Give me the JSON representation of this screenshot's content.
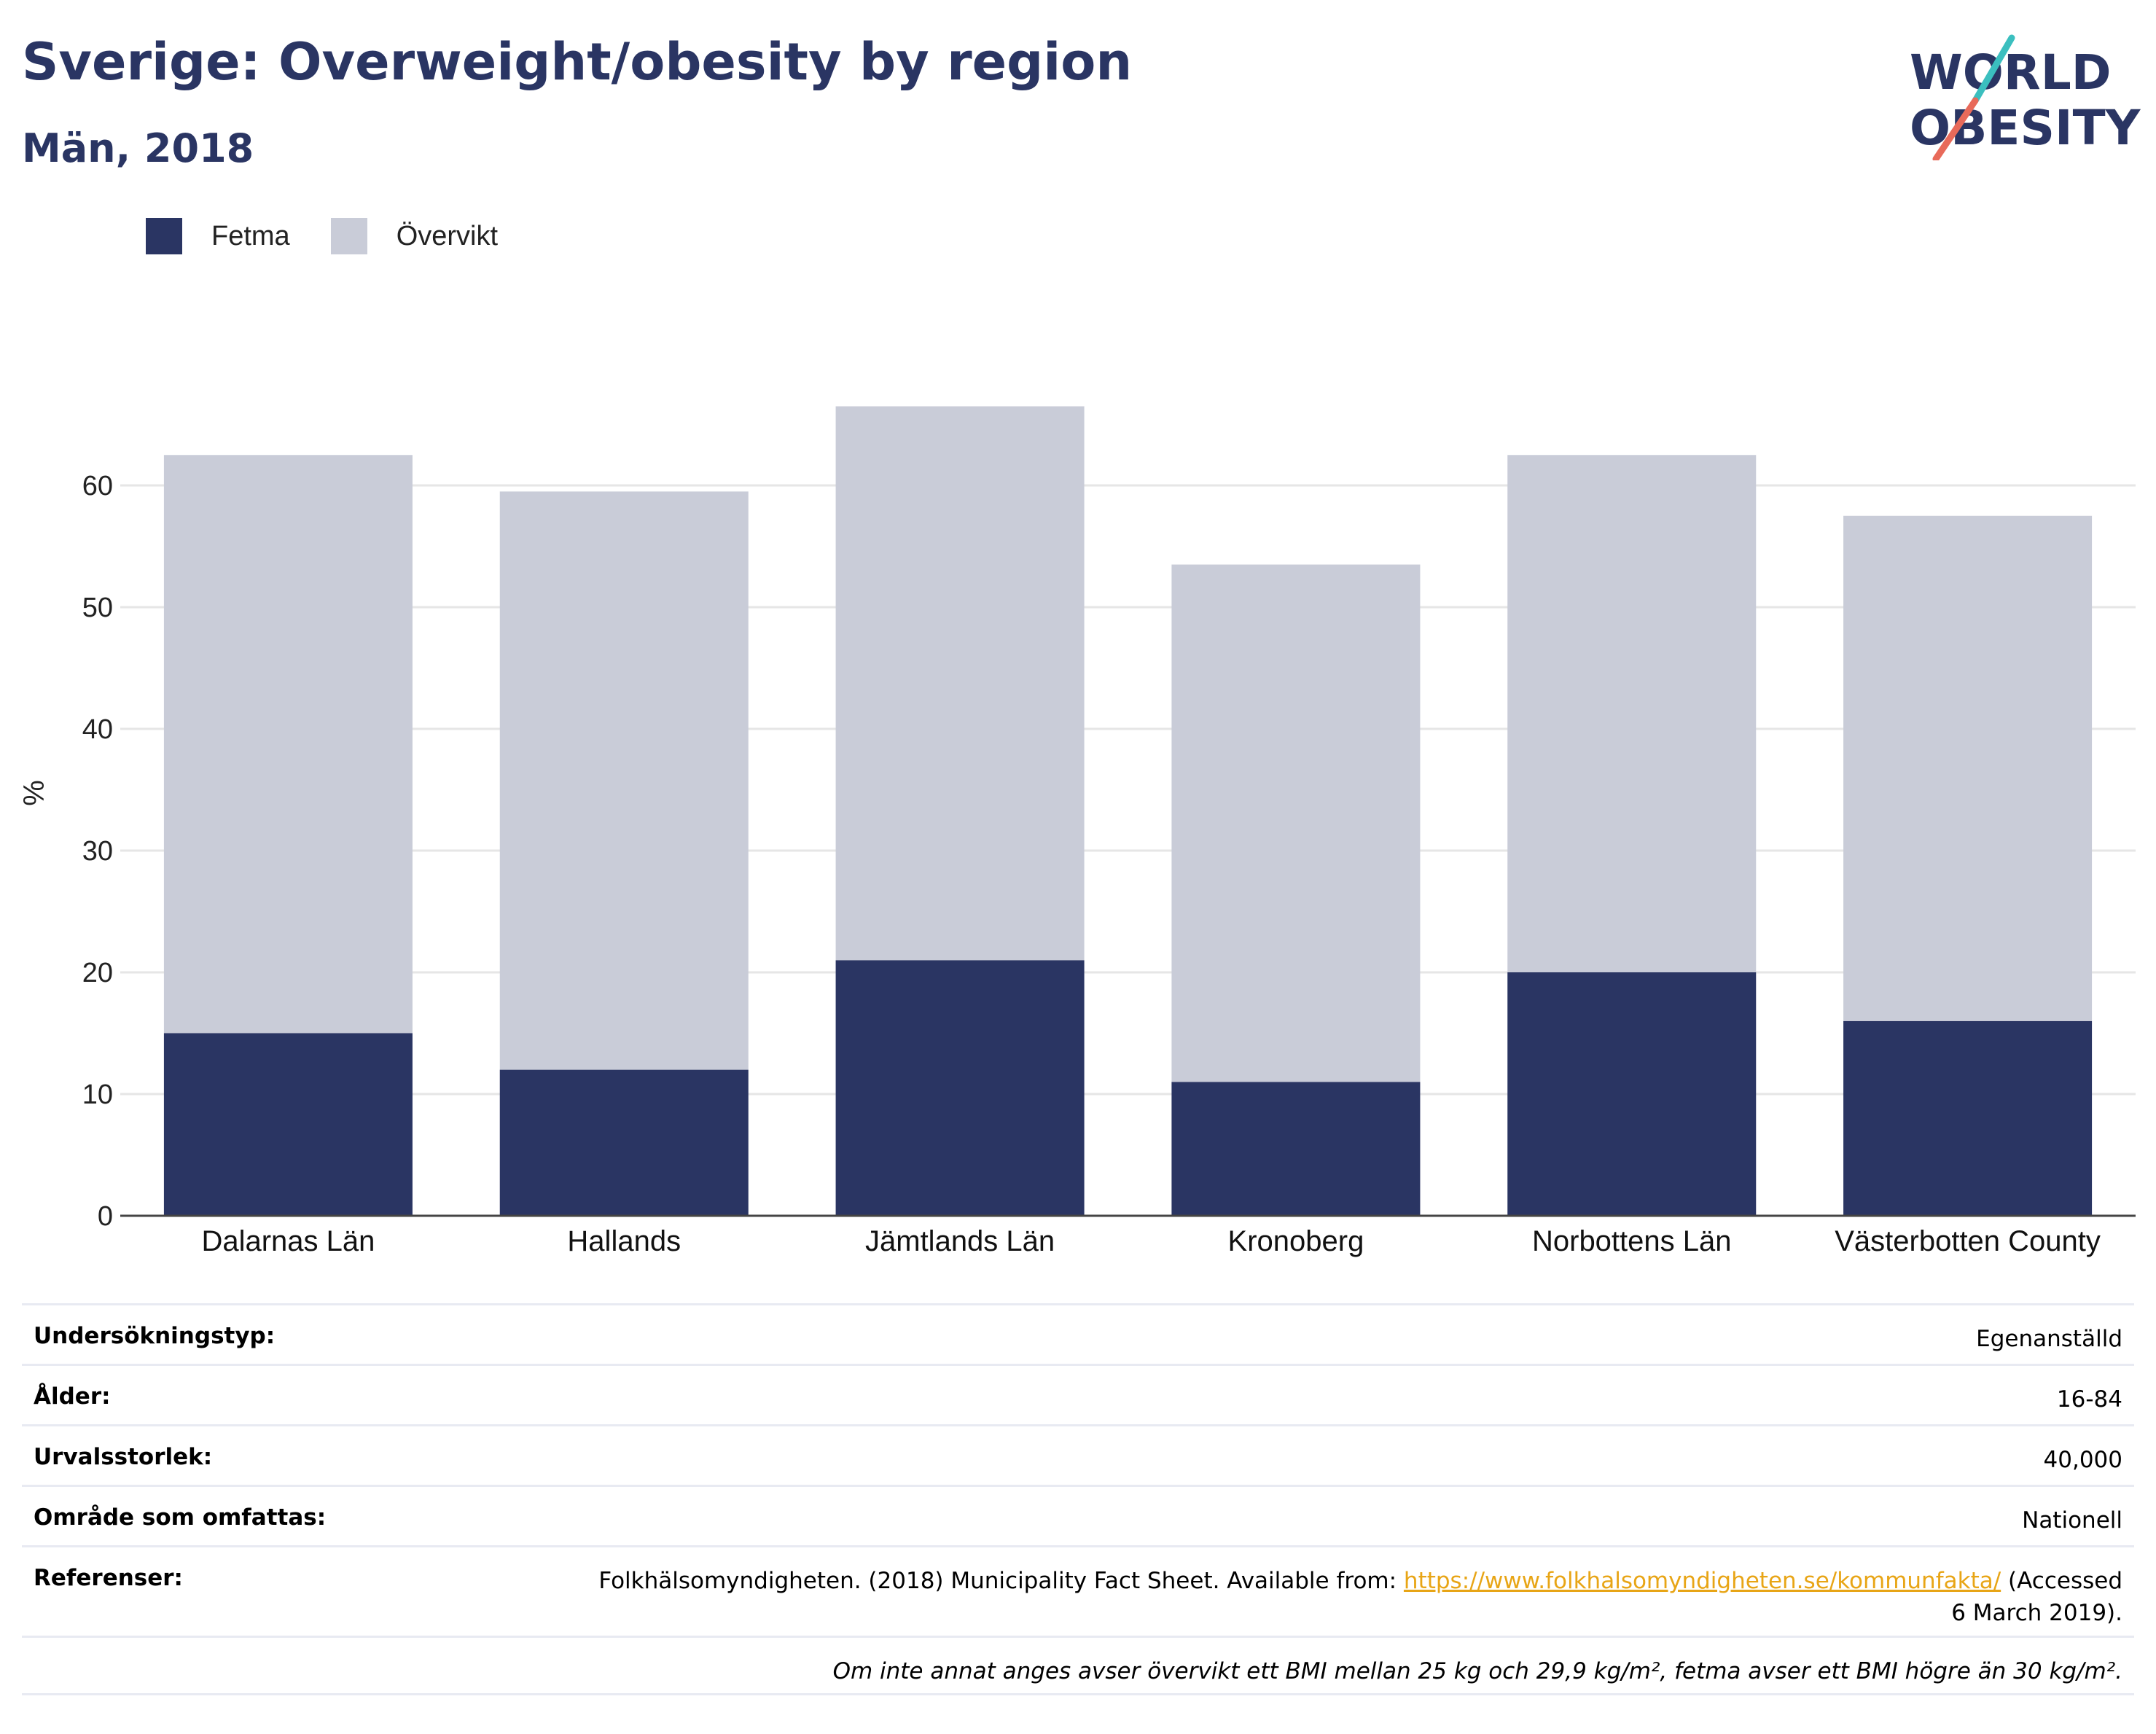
{
  "header": {
    "title": "Sverige: Overweight/obesity by region",
    "subtitle": "Män, 2018"
  },
  "logo": {
    "line1": "WORLD",
    "line2": "OBESITY",
    "colors": {
      "text": "#2a3563",
      "slash_top": "#3bbfbf",
      "slash_bottom": "#e86a5a"
    }
  },
  "legend": {
    "items": [
      {
        "label": "Fetma",
        "color": "#2a3563"
      },
      {
        "label": "Övervikt",
        "color": "#c9ccd8"
      }
    ]
  },
  "chart_data": {
    "type": "bar",
    "stacked": true,
    "categories": [
      "Dalarnas Län",
      "Hallands",
      "Jämtlands Län",
      "Kronoberg",
      "Norbottens Län",
      "Västerbotten County"
    ],
    "series": [
      {
        "name": "Fetma",
        "values": [
          15,
          12,
          21,
          11,
          20,
          16
        ],
        "color": "#2a3563"
      },
      {
        "name": "Övervikt",
        "values": [
          47.5,
          47.5,
          45.5,
          42.5,
          42.5,
          41.5
        ],
        "color": "#c9ccd8"
      }
    ],
    "ylabel": "%",
    "xlabel": "",
    "yticks": [
      0,
      10,
      20,
      30,
      40,
      50,
      60
    ],
    "ylim": [
      0,
      70
    ],
    "grid": true,
    "legend_position": "top-left"
  },
  "info": {
    "rows": [
      {
        "key": "Undersökningstyp:",
        "value": "Egenanställd"
      },
      {
        "key": "Ålder:",
        "value": "16-84"
      },
      {
        "key": "Urvalsstorlek:",
        "value": "40,000"
      },
      {
        "key": "Område som omfattas:",
        "value": "Nationell"
      }
    ],
    "references": {
      "key": "Referenser:",
      "before": "Folkhälsomyndigheten. (2018) Municipality Fact Sheet. Available from: ",
      "link": "https://www.folkhalsomyndigheten.se/kommunfakta/",
      "after_line1": " (Accessed",
      "after_line2": "6 March 2019)."
    },
    "note": "Om inte annat anges avser övervikt ett BMI mellan 25 kg och 29,9 kg/m², fetma avser ett BMI högre än 30 kg/m²."
  }
}
